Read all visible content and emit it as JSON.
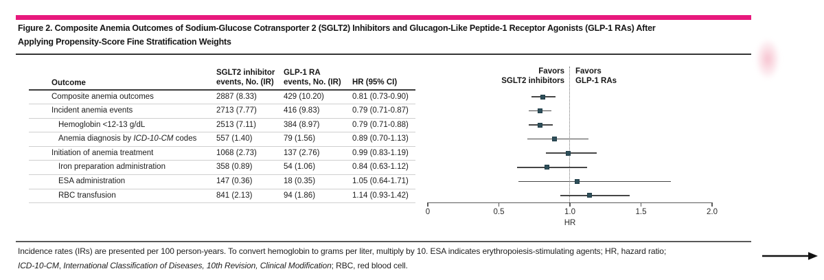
{
  "figure": {
    "title_lines": [
      "Figure 2. Composite Anemia Outcomes of Sodium-Glucose Cotransporter 2 (SGLT2) Inhibitors and Glucagon-Like Peptide-1 Receptor Agonists (GLP-1 RAs) After",
      "Applying Propensity-Score Fine Stratification Weights"
    ],
    "accent_color": "#e7197d",
    "marker_color": "#2f4f5a"
  },
  "table": {
    "headers": {
      "outcome": "Outcome",
      "sglt2_line1": "SGLT2 inhibitor",
      "sglt2_line2": "events, No. (IR)",
      "glp1_line1": "GLP-1 RA",
      "glp1_line2": "events, No. (IR)",
      "hr": "HR (95% CI)"
    }
  },
  "chart_data": {
    "type": "forest",
    "xlabel": "HR",
    "xlim": [
      0,
      2.0
    ],
    "xticks": [
      "0",
      "0.5",
      "1.0",
      "1.5",
      "2.0"
    ],
    "reference_line": 1.0,
    "legend_left_lines": [
      "Favors",
      "SGLT2 inhibitors"
    ],
    "legend_right_lines": [
      "Favors",
      "GLP-1 RAs"
    ],
    "rows": [
      {
        "label_segments": [
          {
            "t": "Composite anemia outcomes",
            "i": false
          }
        ],
        "indent": 0,
        "sglt2": "2887 (8.33)",
        "glp1": "429 (10.20)",
        "hr_text": "0.81 (0.73-0.90)",
        "hr": 0.81,
        "lo": 0.73,
        "hi": 0.9
      },
      {
        "label_segments": [
          {
            "t": "Incident anemia events",
            "i": false
          }
        ],
        "indent": 0,
        "sglt2": "2713 (7.77)",
        "glp1": "416 (9.83)",
        "hr_text": "0.79 (0.71-0.87)",
        "hr": 0.79,
        "lo": 0.71,
        "hi": 0.87
      },
      {
        "label_segments": [
          {
            "t": "Hemoglobin <12-13 g/dL",
            "i": false
          }
        ],
        "indent": 1,
        "sglt2": "2513 (7.11)",
        "glp1": "384 (8.97)",
        "hr_text": "0.79 (0.71-0.88)",
        "hr": 0.79,
        "lo": 0.71,
        "hi": 0.88
      },
      {
        "label_segments": [
          {
            "t": "Anemia diagnosis by ",
            "i": false
          },
          {
            "t": "ICD-10-CM",
            "i": true
          },
          {
            "t": " codes",
            "i": false
          }
        ],
        "indent": 1,
        "sglt2": "557 (1.40)",
        "glp1": "79 (1.56)",
        "hr_text": "0.89 (0.70-1.13)",
        "hr": 0.89,
        "lo": 0.7,
        "hi": 1.13
      },
      {
        "label_segments": [
          {
            "t": "Initiation of anemia treatment",
            "i": false
          }
        ],
        "indent": 0,
        "sglt2": "1068 (2.73)",
        "glp1": "137 (2.76)",
        "hr_text": "0.99 (0.83-1.19)",
        "hr": 0.99,
        "lo": 0.83,
        "hi": 1.19
      },
      {
        "label_segments": [
          {
            "t": "Iron preparation administration",
            "i": false
          }
        ],
        "indent": 1,
        "sglt2": "358 (0.89)",
        "glp1": "54 (1.06)",
        "hr_text": "0.84 (0.63-1.12)",
        "hr": 0.84,
        "lo": 0.63,
        "hi": 1.12
      },
      {
        "label_segments": [
          {
            "t": "ESA administration",
            "i": false
          }
        ],
        "indent": 1,
        "sglt2": "147 (0.36)",
        "glp1": "18 (0.35)",
        "hr_text": "1.05 (0.64-1.71)",
        "hr": 1.05,
        "lo": 0.64,
        "hi": 1.71
      },
      {
        "label_segments": [
          {
            "t": "RBC transfusion",
            "i": false
          }
        ],
        "indent": 1,
        "sglt2": "841 (2.13)",
        "glp1": "94 (1.86)",
        "hr_text": "1.14 (0.93-1.42)",
        "hr": 1.14,
        "lo": 0.93,
        "hi": 1.42
      }
    ]
  },
  "footnote": {
    "lines": [
      [
        {
          "t": "Incidence rates (IRs) are presented per 100 person-years. To convert hemoglobin to grams per liter, multiply by 10. ESA indicates erythropoiesis-stimulating agents; HR, hazard ratio;",
          "i": false
        }
      ],
      [
        {
          "t": "ICD-10-CM",
          "i": true
        },
        {
          "t": ", ",
          "i": false
        },
        {
          "t": "International Classification of Diseases, 10th Revision, Clinical Modification",
          "i": true
        },
        {
          "t": "; RBC, red blood cell.",
          "i": false
        }
      ]
    ]
  }
}
